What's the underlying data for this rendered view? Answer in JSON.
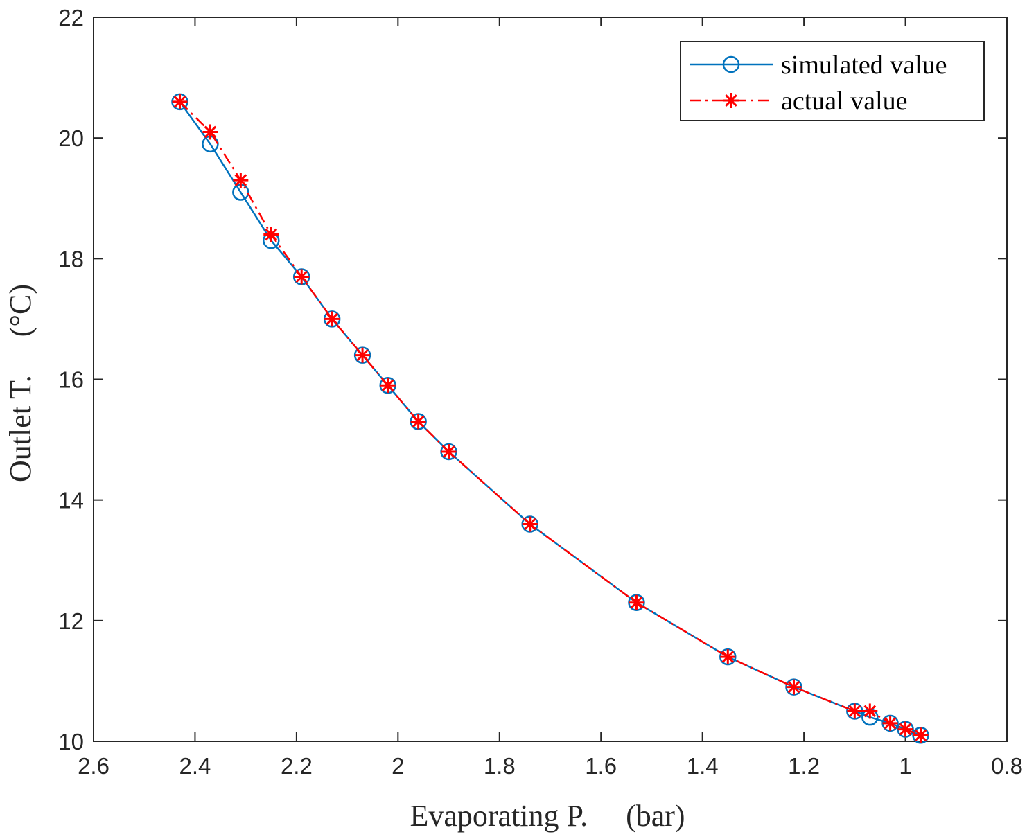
{
  "chart_data": {
    "type": "line",
    "title": "",
    "xlabel": "Evaporating P.     (bar)",
    "ylabel": "Outlet T.     (°C)",
    "xlim": [
      2.6,
      0.8
    ],
    "x_reversed": true,
    "ylim": [
      10,
      22
    ],
    "grid": false,
    "legend_position": "top-right",
    "x_ticks": [
      2.6,
      2.4,
      2.2,
      2,
      1.8,
      1.6,
      1.4,
      1.2,
      1,
      0.8
    ],
    "x_tick_labels": [
      "2.6",
      "2.4",
      "2.2",
      "2",
      "1.8",
      "1.6",
      "1.4",
      "1.2",
      "1",
      "0.8"
    ],
    "y_ticks": [
      10,
      12,
      14,
      16,
      18,
      20,
      22
    ],
    "y_tick_labels": [
      "10",
      "12",
      "14",
      "16",
      "18",
      "20",
      "22"
    ],
    "series": [
      {
        "name": "simulated value",
        "color": "#0072bd",
        "line_style": "solid",
        "marker": "circle",
        "x": [
          2.43,
          2.37,
          2.31,
          2.25,
          2.19,
          2.13,
          2.07,
          2.02,
          1.96,
          1.9,
          1.74,
          1.53,
          1.35,
          1.22,
          1.1,
          1.07,
          1.03,
          1.0,
          0.97
        ],
        "y": [
          20.6,
          19.9,
          19.1,
          18.3,
          17.7,
          17.0,
          16.4,
          15.9,
          15.3,
          14.8,
          13.6,
          12.3,
          11.4,
          10.9,
          10.5,
          10.4,
          10.3,
          10.2,
          10.1
        ]
      },
      {
        "name": "actual value",
        "color": "#ff0000",
        "line_style": "dashdot",
        "marker": "asterisk",
        "x": [
          2.43,
          2.37,
          2.31,
          2.25,
          2.19,
          2.13,
          2.07,
          2.02,
          1.96,
          1.9,
          1.74,
          1.53,
          1.35,
          1.22,
          1.1,
          1.07,
          1.03,
          1.0,
          0.97
        ],
        "y": [
          20.6,
          20.1,
          19.3,
          18.4,
          17.7,
          17.0,
          16.4,
          15.9,
          15.3,
          14.8,
          13.6,
          12.3,
          11.4,
          10.9,
          10.5,
          10.5,
          10.3,
          10.2,
          10.1
        ]
      }
    ]
  }
}
